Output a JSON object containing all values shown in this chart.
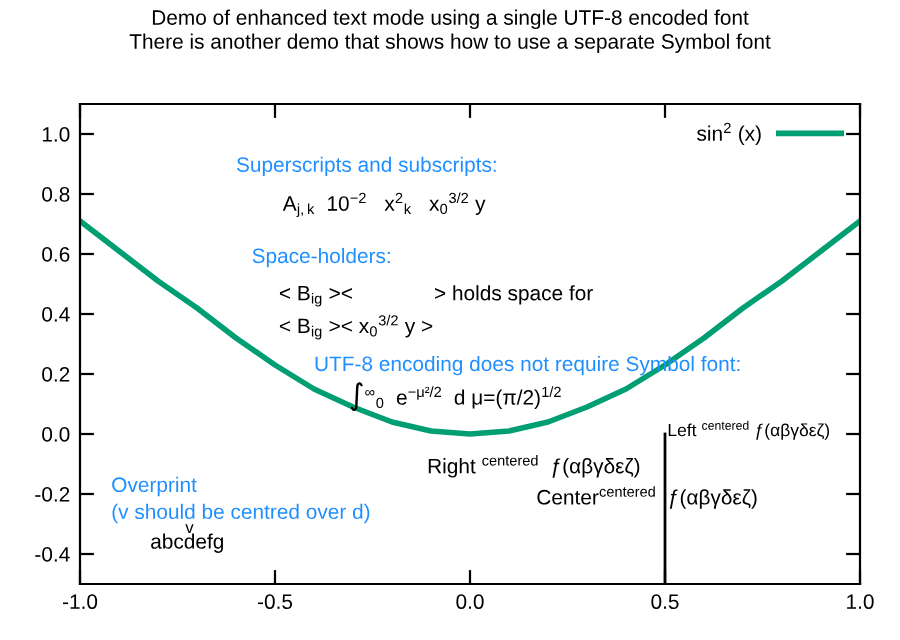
{
  "chart_data": {
    "type": "line",
    "title": "Demo of enhanced text mode using a single UTF-8 encoded font\nThere is another demo that shows how to use a separate Symbol font",
    "x": [
      -1.0,
      -0.9,
      -0.8,
      -0.7,
      -0.6,
      -0.5,
      -0.4,
      -0.3,
      -0.2,
      -0.1,
      0.0,
      0.1,
      0.2,
      0.3,
      0.4,
      0.5,
      0.6,
      0.7,
      0.8,
      0.9,
      1.0
    ],
    "series": [
      {
        "name": "sin$^{2}$ (x)",
        "color": "#009e73",
        "values": [
          0.71,
          0.61,
          0.51,
          0.42,
          0.32,
          0.23,
          0.15,
          0.09,
          0.04,
          0.01,
          0.0,
          0.01,
          0.04,
          0.09,
          0.15,
          0.23,
          0.32,
          0.42,
          0.51,
          0.61,
          0.71
        ]
      },
      {
        "color": "#000000",
        "x": [
          0.5,
          0.5
        ],
        "values": [
          -0.5,
          0.0
        ]
      }
    ],
    "xlim": [
      -1.0,
      1.0
    ],
    "xticks": [
      {
        "value": -1.0,
        "label": "-1.0"
      },
      {
        "value": -0.5,
        "label": "-0.5"
      },
      {
        "value": 0.0,
        "label": "0.0"
      },
      {
        "value": 0.5,
        "label": "0.5"
      },
      {
        "value": 1.0,
        "label": "1.0"
      }
    ],
    "ylim": [
      -0.5,
      1.1
    ],
    "yticks": [
      {
        "value": -0.4,
        "label": "-0.4"
      },
      {
        "value": -0.2,
        "label": "-0.2"
      },
      {
        "value": 0.0,
        "label": "0.0"
      },
      {
        "value": 0.2,
        "label": "0.2"
      },
      {
        "value": 0.4,
        "label": "0.4"
      },
      {
        "value": 0.6,
        "label": "0.6"
      },
      {
        "value": 0.8,
        "label": "0.8"
      },
      {
        "value": 1.0,
        "label": "1.0"
      }
    ],
    "grid": false,
    "legend": "top right",
    "marker": "none",
    "line_style": "solid",
    "annotations": [
      "Superscripts and subscripts:",
      "A$_{j,k}$  10$^{−2}$   x$^{2}$$_{k}$   x$_{0}$$^{3/2}$ y",
      "Space-holders:",
      "< B$_{ig}$ ><              > holds space for",
      "< B$_{ig}$ >< x$_{0}$$^{3/2}$ y >",
      "UTF-8 encoding does not require Symbol font:",
      "∫$^{∞}$$_{0}$  e$^{−μ²/2}$  d μ=(π/2)$^{1/2}$",
      "Overprint\n(v should be centred over d)",
      "abcdefg",
      "v",
      "Right $^{centered}$  ƒ(αβγδεζ)",
      "Center$^{centered}$  ƒ(αβγδεζ)",
      "Left $^{centered}$ ƒ(αβγδεζ)"
    ]
  }
}
